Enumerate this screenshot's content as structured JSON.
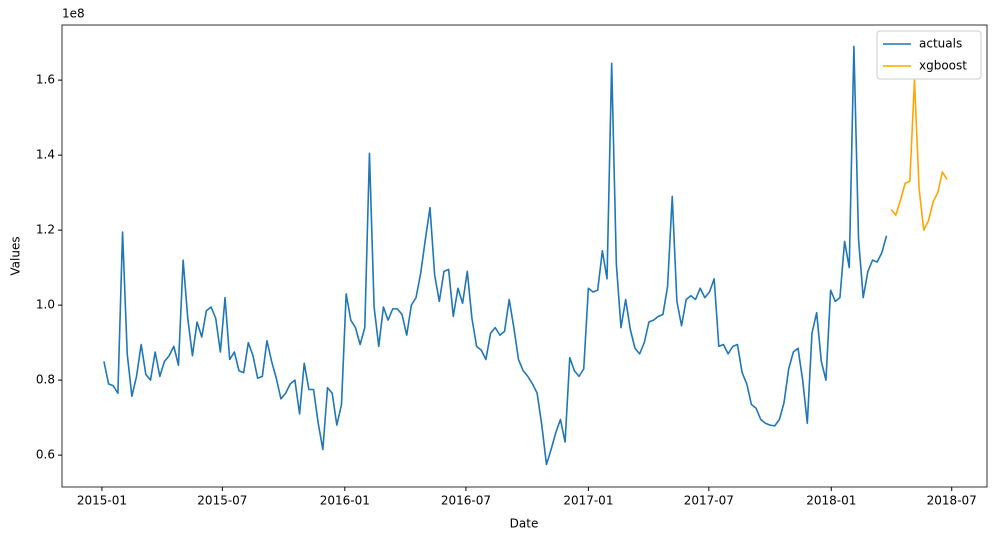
{
  "chart_data": {
    "type": "line",
    "x_label": "Date",
    "y_label": "Values",
    "y_offset_label": "1e8",
    "legend": "upper right",
    "x": [
      "2015-01-04",
      "2015-01-11",
      "2015-01-18",
      "2015-01-25",
      "2015-02-01",
      "2015-02-08",
      "2015-02-15",
      "2015-02-22",
      "2015-03-01",
      "2015-03-08",
      "2015-03-15",
      "2015-03-22",
      "2015-03-29",
      "2015-04-05",
      "2015-04-12",
      "2015-04-19",
      "2015-04-26",
      "2015-05-03",
      "2015-05-10",
      "2015-05-17",
      "2015-05-24",
      "2015-05-31",
      "2015-06-07",
      "2015-06-14",
      "2015-06-21",
      "2015-06-28",
      "2015-07-05",
      "2015-07-12",
      "2015-07-19",
      "2015-07-26",
      "2015-08-02",
      "2015-08-09",
      "2015-08-16",
      "2015-08-23",
      "2015-08-30",
      "2015-09-06",
      "2015-09-13",
      "2015-09-20",
      "2015-09-27",
      "2015-10-04",
      "2015-10-11",
      "2015-10-18",
      "2015-10-25",
      "2015-11-01",
      "2015-11-08",
      "2015-11-15",
      "2015-11-22",
      "2015-11-29",
      "2015-12-06",
      "2015-12-13",
      "2015-12-20",
      "2015-12-27",
      "2016-01-03",
      "2016-01-10",
      "2016-01-17",
      "2016-01-24",
      "2016-01-31",
      "2016-02-07",
      "2016-02-14",
      "2016-02-21",
      "2016-02-28",
      "2016-03-06",
      "2016-03-13",
      "2016-03-20",
      "2016-03-27",
      "2016-04-03",
      "2016-04-10",
      "2016-04-17",
      "2016-04-24",
      "2016-05-01",
      "2016-05-08",
      "2016-05-15",
      "2016-05-22",
      "2016-05-29",
      "2016-06-05",
      "2016-06-12",
      "2016-06-19",
      "2016-06-26",
      "2016-07-03",
      "2016-07-10",
      "2016-07-17",
      "2016-07-24",
      "2016-07-31",
      "2016-08-07",
      "2016-08-14",
      "2016-08-21",
      "2016-08-28",
      "2016-09-04",
      "2016-09-11",
      "2016-09-18",
      "2016-09-25",
      "2016-10-02",
      "2016-10-09",
      "2016-10-16",
      "2016-10-23",
      "2016-10-30",
      "2016-11-06",
      "2016-11-13",
      "2016-11-20",
      "2016-11-27",
      "2016-12-04",
      "2016-12-11",
      "2016-12-18",
      "2016-12-25",
      "2017-01-01",
      "2017-01-08",
      "2017-01-15",
      "2017-01-22",
      "2017-01-29",
      "2017-02-05",
      "2017-02-12",
      "2017-02-19",
      "2017-02-26",
      "2017-03-05",
      "2017-03-12",
      "2017-03-19",
      "2017-03-26",
      "2017-04-02",
      "2017-04-09",
      "2017-04-16",
      "2017-04-23",
      "2017-04-30",
      "2017-05-07",
      "2017-05-14",
      "2017-05-21",
      "2017-05-28",
      "2017-06-04",
      "2017-06-11",
      "2017-06-18",
      "2017-06-25",
      "2017-07-02",
      "2017-07-09",
      "2017-07-16",
      "2017-07-23",
      "2017-07-30",
      "2017-08-06",
      "2017-08-13",
      "2017-08-20",
      "2017-08-27",
      "2017-09-03",
      "2017-09-10",
      "2017-09-17",
      "2017-09-24",
      "2017-10-01",
      "2017-10-08",
      "2017-10-15",
      "2017-10-22",
      "2017-10-29",
      "2017-11-05",
      "2017-11-12",
      "2017-11-19",
      "2017-11-26",
      "2017-12-03",
      "2017-12-10",
      "2017-12-17",
      "2017-12-24",
      "2017-12-31",
      "2018-01-07",
      "2018-01-14",
      "2018-01-21",
      "2018-01-28",
      "2018-02-04",
      "2018-02-11",
      "2018-02-18",
      "2018-02-25",
      "2018-03-04",
      "2018-03-11",
      "2018-03-18",
      "2018-03-25",
      "2018-04-01",
      "2018-04-08",
      "2018-04-15",
      "2018-04-22",
      "2018-04-29",
      "2018-05-06",
      "2018-05-13",
      "2018-05-20",
      "2018-05-27",
      "2018-06-03",
      "2018-06-10",
      "2018-06-17",
      "2018-06-24"
    ],
    "series": [
      {
        "name": "actuals",
        "color": "#1f77b4",
        "values": [
          0.85,
          0.79,
          0.785,
          0.765,
          1.195,
          0.87,
          0.757,
          0.81,
          0.895,
          0.815,
          0.8,
          0.875,
          0.81,
          0.85,
          0.865,
          0.89,
          0.84,
          1.12,
          0.965,
          0.865,
          0.955,
          0.915,
          0.985,
          0.995,
          0.965,
          0.875,
          1.02,
          0.855,
          0.875,
          0.825,
          0.82,
          0.9,
          0.865,
          0.805,
          0.81,
          0.905,
          0.85,
          0.805,
          0.75,
          0.765,
          0.79,
          0.8,
          0.71,
          0.845,
          0.775,
          0.775,
          0.685,
          0.615,
          0.78,
          0.765,
          0.68,
          0.735,
          1.03,
          0.96,
          0.94,
          0.895,
          0.94,
          1.405,
          0.995,
          0.89,
          0.995,
          0.96,
          0.99,
          0.99,
          0.975,
          0.92,
          1.0,
          1.02,
          1.085,
          1.175,
          1.26,
          1.08,
          1.01,
          1.09,
          1.095,
          0.97,
          1.045,
          1.005,
          1.09,
          0.965,
          0.89,
          0.88,
          0.855,
          0.925,
          0.94,
          0.92,
          0.93,
          1.015,
          0.94,
          0.855,
          0.825,
          0.81,
          0.79,
          0.765,
          0.68,
          0.575,
          0.615,
          0.66,
          0.695,
          0.635,
          0.86,
          0.825,
          0.81,
          0.83,
          1.045,
          1.035,
          1.04,
          1.145,
          1.07,
          1.645,
          1.11,
          0.94,
          1.015,
          0.935,
          0.885,
          0.87,
          0.9,
          0.955,
          0.96,
          0.97,
          0.975,
          1.05,
          1.29,
          1.01,
          0.945,
          1.015,
          1.025,
          1.015,
          1.045,
          1.02,
          1.035,
          1.07,
          0.89,
          0.895,
          0.87,
          0.89,
          0.895,
          0.82,
          0.79,
          0.735,
          0.725,
          0.695,
          0.685,
          0.68,
          0.678,
          0.695,
          0.74,
          0.83,
          0.875,
          0.885,
          0.8,
          0.685,
          0.925,
          0.98,
          0.85,
          0.8,
          1.04,
          1.01,
          1.02,
          1.17,
          1.1,
          1.69,
          1.175,
          1.02,
          1.09,
          1.12,
          1.115,
          1.14,
          1.185,
          null,
          null,
          null,
          null,
          null,
          null,
          null,
          null,
          null,
          null,
          null,
          null,
          null
        ]
      },
      {
        "name": "xgboost",
        "color": "#ffa500",
        "values": [
          null,
          null,
          null,
          null,
          null,
          null,
          null,
          null,
          null,
          null,
          null,
          null,
          null,
          null,
          null,
          null,
          null,
          null,
          null,
          null,
          null,
          null,
          null,
          null,
          null,
          null,
          null,
          null,
          null,
          null,
          null,
          null,
          null,
          null,
          null,
          null,
          null,
          null,
          null,
          null,
          null,
          null,
          null,
          null,
          null,
          null,
          null,
          null,
          null,
          null,
          null,
          null,
          null,
          null,
          null,
          null,
          null,
          null,
          null,
          null,
          null,
          null,
          null,
          null,
          null,
          null,
          null,
          null,
          null,
          null,
          null,
          null,
          null,
          null,
          null,
          null,
          null,
          null,
          null,
          null,
          null,
          null,
          null,
          null,
          null,
          null,
          null,
          null,
          null,
          null,
          null,
          null,
          null,
          null,
          null,
          null,
          null,
          null,
          null,
          null,
          null,
          null,
          null,
          null,
          null,
          null,
          null,
          null,
          null,
          null,
          null,
          null,
          null,
          null,
          null,
          null,
          null,
          null,
          null,
          null,
          null,
          null,
          null,
          null,
          null,
          null,
          null,
          null,
          null,
          null,
          null,
          null,
          null,
          null,
          null,
          null,
          null,
          null,
          null,
          null,
          null,
          null,
          null,
          null,
          null,
          null,
          null,
          null,
          null,
          null,
          null,
          null,
          null,
          null,
          null,
          null,
          null,
          null,
          null,
          null,
          null,
          null,
          null,
          null,
          null,
          null,
          null,
          null,
          null,
          1.255,
          1.24,
          1.28,
          1.325,
          1.33,
          1.6,
          1.31,
          1.2,
          1.225,
          1.275,
          1.3,
          1.355,
          1.335
        ]
      }
    ],
    "xlim": [
      "2014-11-02",
      "2018-08-23"
    ],
    "xticks": [
      "2015-01",
      "2015-07",
      "2016-01",
      "2016-07",
      "2017-01",
      "2017-07",
      "2018-01",
      "2018-07"
    ],
    "ylim": [
      0.515,
      1.747
    ],
    "yticks": [
      0.6,
      0.8,
      {
        "value": 1,
        "label": "1.0"
      },
      1.2,
      1.4,
      1.6
    ]
  }
}
